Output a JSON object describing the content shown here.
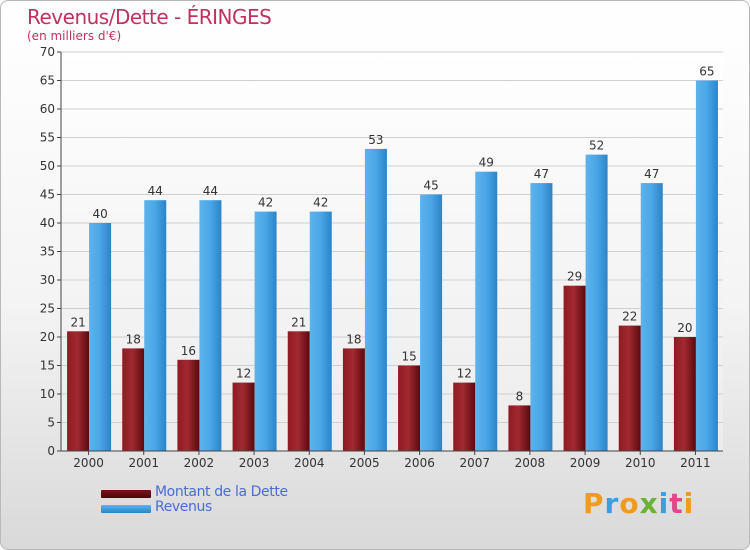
{
  "title": "Revenus/Dette - ÉRINGES",
  "subtitle": "(en milliers d'€)",
  "colors": {
    "debt": "#6b0d12",
    "revenue": "#3f9ee0",
    "title": "#c0325e",
    "legend_text": "#4a6bd8"
  },
  "legend": {
    "debt_label": "Montant de la Dette",
    "revenue_label": "Revenus"
  },
  "logo": {
    "text": "Proxiti",
    "letters": [
      "P",
      "r",
      "o",
      "x",
      "i",
      "t",
      "i"
    ],
    "letter_colors": [
      "#f29b1a",
      "#37a0e0",
      "#f29b1a",
      "#6bb233",
      "#37a0e0",
      "#e2478a",
      "#f29b1a"
    ]
  },
  "chart_data": {
    "type": "bar",
    "categories": [
      "2000",
      "2001",
      "2002",
      "2003",
      "2004",
      "2005",
      "2006",
      "2007",
      "2008",
      "2009",
      "2010",
      "2011"
    ],
    "series": [
      {
        "name": "Montant de la Dette",
        "values": [
          21,
          18,
          16,
          12,
          21,
          18,
          15,
          12,
          8,
          29,
          22,
          20
        ]
      },
      {
        "name": "Revenus",
        "values": [
          40,
          44,
          44,
          42,
          42,
          53,
          45,
          49,
          47,
          52,
          47,
          65
        ]
      }
    ],
    "ylim": [
      0,
      70
    ],
    "yticks": [
      0,
      5,
      10,
      15,
      20,
      25,
      30,
      35,
      40,
      45,
      50,
      55,
      60,
      65,
      70
    ],
    "grid": true,
    "legend_position": "bottom-left",
    "data_labels": true
  }
}
